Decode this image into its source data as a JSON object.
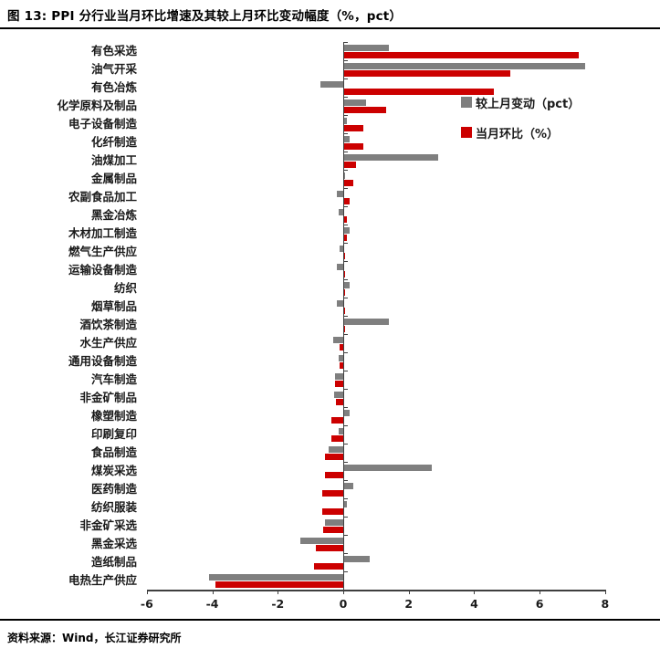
{
  "header": {
    "title": "图 13: PPI 分行业当月环比增速及其较上月环比变动幅度（%，pct）"
  },
  "footer": {
    "source": "资料来源：Wind，长江证券研究所"
  },
  "colors": {
    "series_change": "#7f7f7f",
    "series_mom": "#cc0000",
    "axis": "#3f3f3f"
  },
  "chart_data": {
    "type": "bar",
    "orientation": "horizontal",
    "title": "图 13: PPI 分行业当月环比增速及其较上月环比变动幅度（%，pct）",
    "xlabel": "",
    "ylabel": "",
    "xlim": [
      -6,
      8
    ],
    "xticks": [
      -6,
      -4,
      -2,
      0,
      2,
      4,
      6,
      8
    ],
    "grid": false,
    "legend_position": "upper-right-inside",
    "categories": [
      "有色采选",
      "油气开采",
      "有色冶炼",
      "化学原料及制品",
      "电子设备制造",
      "化纤制造",
      "油煤加工",
      "金属制品",
      "农副食品加工",
      "黑金冶炼",
      "木材加工制造",
      "燃气生产供应",
      "运输设备制造",
      "纺织",
      "烟草制品",
      "酒饮茶制造",
      "水生产供应",
      "通用设备制造",
      "汽车制造",
      "非金矿制品",
      "橡塑制造",
      "印刷复印",
      "食品制造",
      "煤炭采选",
      "医药制造",
      "纺织服装",
      "非金矿采选",
      "黑金采选",
      "造纸制品",
      "电热生产供应"
    ],
    "series": [
      {
        "name": "较上月变动（pct）",
        "color": "#7f7f7f",
        "values": [
          1.4,
          7.4,
          -0.7,
          0.7,
          0.1,
          0.2,
          2.9,
          0.05,
          -0.2,
          -0.15,
          0.2,
          -0.1,
          -0.2,
          0.2,
          -0.2,
          1.4,
          -0.3,
          -0.15,
          -0.25,
          -0.27,
          0.2,
          -0.15,
          -0.45,
          2.7,
          0.3,
          0.1,
          -0.55,
          -1.3,
          0.8,
          -4.1
        ]
      },
      {
        "name": "当月环比（%）",
        "color": "#cc0000",
        "values": [
          7.2,
          5.1,
          4.6,
          1.3,
          0.6,
          0.6,
          0.4,
          0.3,
          0.2,
          0.1,
          0.1,
          0.05,
          0.05,
          0.05,
          0.05,
          0.05,
          -0.1,
          -0.1,
          -0.25,
          -0.23,
          -0.35,
          -0.35,
          -0.55,
          -0.55,
          -0.65,
          -0.65,
          -0.6,
          -0.85,
          -0.9,
          -3.9
        ]
      }
    ]
  }
}
